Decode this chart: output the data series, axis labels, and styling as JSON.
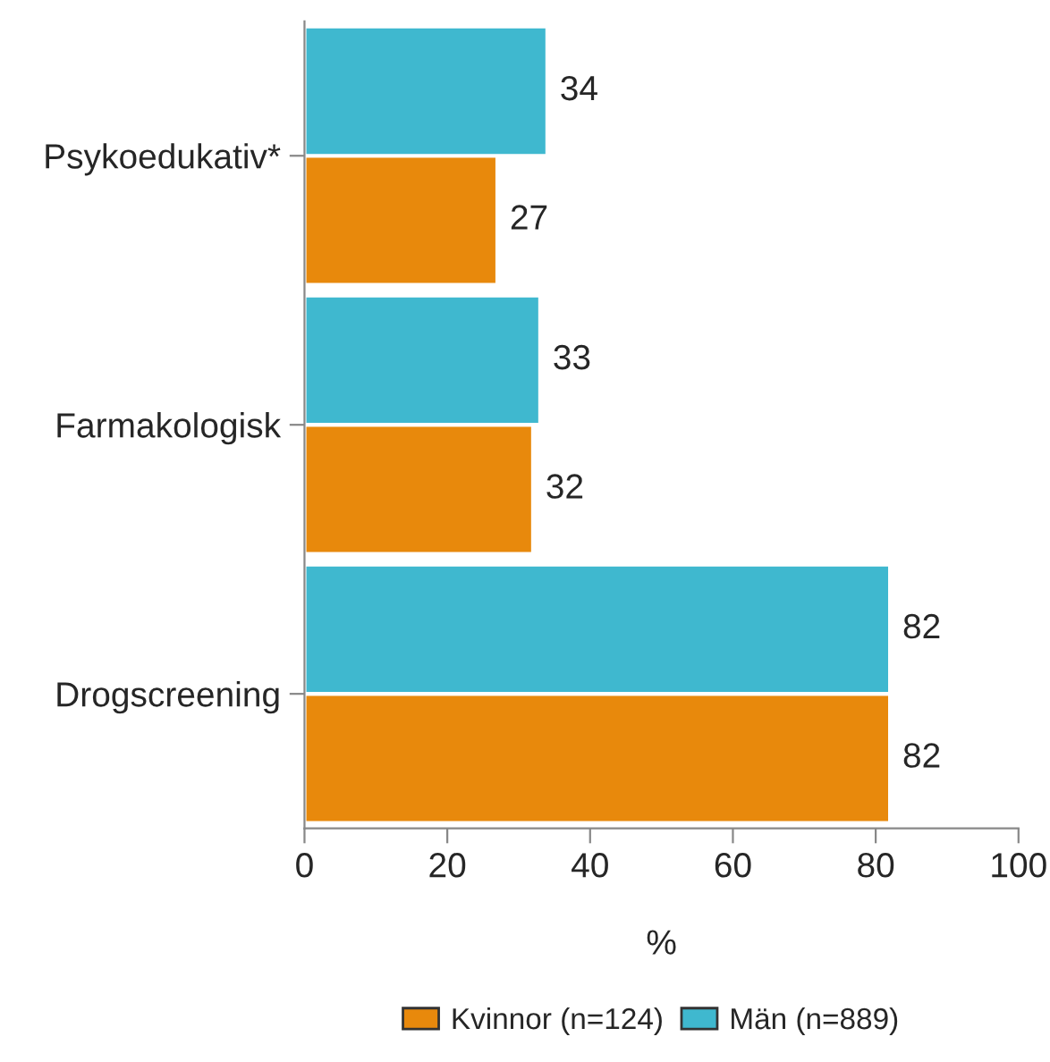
{
  "chart_data": {
    "type": "bar",
    "orientation": "horizontal",
    "xlabel": "%",
    "categories": [
      "Psykoedukativ*",
      "Farmakologisk",
      "Drogscreening"
    ],
    "series": [
      {
        "name": "Kvinnor (n=124)",
        "color": "#e8890c",
        "values": [
          27,
          32,
          82
        ]
      },
      {
        "name": "Män (n=889)",
        "color": "#3fb8cf",
        "values": [
          34,
          33,
          82
        ]
      }
    ],
    "xlim": [
      0,
      100
    ],
    "xticks": [
      0,
      20,
      40,
      60,
      80,
      100
    ],
    "data_labels": true,
    "grid": false,
    "legend": "bottom"
  }
}
